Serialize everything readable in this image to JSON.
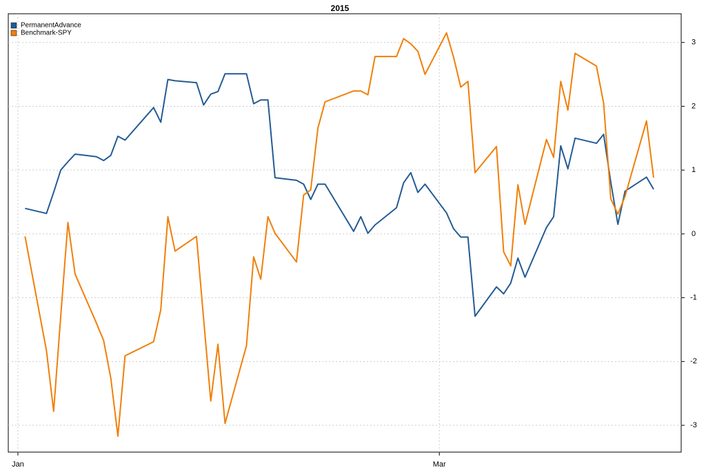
{
  "chart_data": {
    "type": "line",
    "title": "2015",
    "x": [
      2,
      5,
      6,
      7,
      8,
      9,
      12,
      13,
      14,
      15,
      16,
      20,
      21,
      22,
      23,
      26,
      27,
      28,
      29,
      30,
      33,
      34,
      35,
      36,
      37,
      40,
      41,
      42,
      43,
      44,
      48,
      49,
      50,
      51,
      54,
      55,
      56,
      57,
      58,
      61,
      62,
      63,
      64,
      65,
      68,
      69,
      70,
      71,
      72,
      75,
      76,
      77,
      78,
      79,
      82,
      83,
      84,
      85,
      86,
      89,
      90
    ],
    "xlim": [
      -0.35,
      93.86
    ],
    "xticks": [
      {
        "value": 1,
        "label": "Jan"
      },
      {
        "value": 60,
        "label": "Mar"
      }
    ],
    "ylim": [
      -3.42,
      3.45
    ],
    "yticks": [
      -3,
      -2,
      -1,
      0,
      1,
      2,
      3
    ],
    "y_axis_side": "right",
    "grid": true,
    "legend": "top-left",
    "series": [
      {
        "name": "PermanentAdvance",
        "color": "#235b94",
        "values": [
          0.4,
          0.32,
          0.65,
          1.0,
          1.13,
          1.25,
          1.21,
          1.15,
          1.23,
          1.53,
          1.47,
          1.98,
          1.75,
          2.42,
          2.4,
          2.37,
          2.02,
          2.19,
          2.23,
          2.51,
          2.51,
          2.04,
          2.1,
          2.1,
          0.88,
          0.84,
          0.78,
          0.54,
          0.78,
          0.78,
          0.04,
          0.27,
          0.01,
          0.14,
          0.41,
          0.8,
          0.96,
          0.65,
          0.78,
          0.33,
          0.08,
          -0.05,
          -0.05,
          -1.29,
          -0.83,
          -0.94,
          -0.77,
          -0.38,
          -0.68,
          0.1,
          0.27,
          1.38,
          1.02,
          1.5,
          1.42,
          1.56,
          0.81,
          0.15,
          0.67,
          0.89,
          0.7
        ]
      },
      {
        "name": "Benchmark-SPY",
        "color": "#f07f09",
        "values": [
          -0.04,
          -1.83,
          -2.78,
          -1.29,
          0.18,
          -0.63,
          -1.4,
          -1.67,
          -2.26,
          -3.17,
          -1.91,
          -1.69,
          -1.19,
          0.27,
          -0.27,
          -0.04,
          -1.33,
          -2.62,
          -1.73,
          -2.97,
          -1.75,
          -0.36,
          -0.71,
          0.27,
          0.01,
          -0.44,
          0.61,
          0.69,
          1.66,
          2.07,
          2.24,
          2.24,
          2.18,
          2.78,
          2.78,
          3.06,
          2.98,
          2.86,
          2.5,
          3.15,
          2.77,
          2.3,
          2.39,
          0.96,
          1.37,
          -0.28,
          -0.5,
          0.77,
          0.15,
          1.48,
          1.2,
          2.39,
          1.94,
          2.83,
          2.63,
          2.05,
          0.55,
          0.31,
          0.59,
          1.77,
          0.88
        ]
      }
    ]
  }
}
